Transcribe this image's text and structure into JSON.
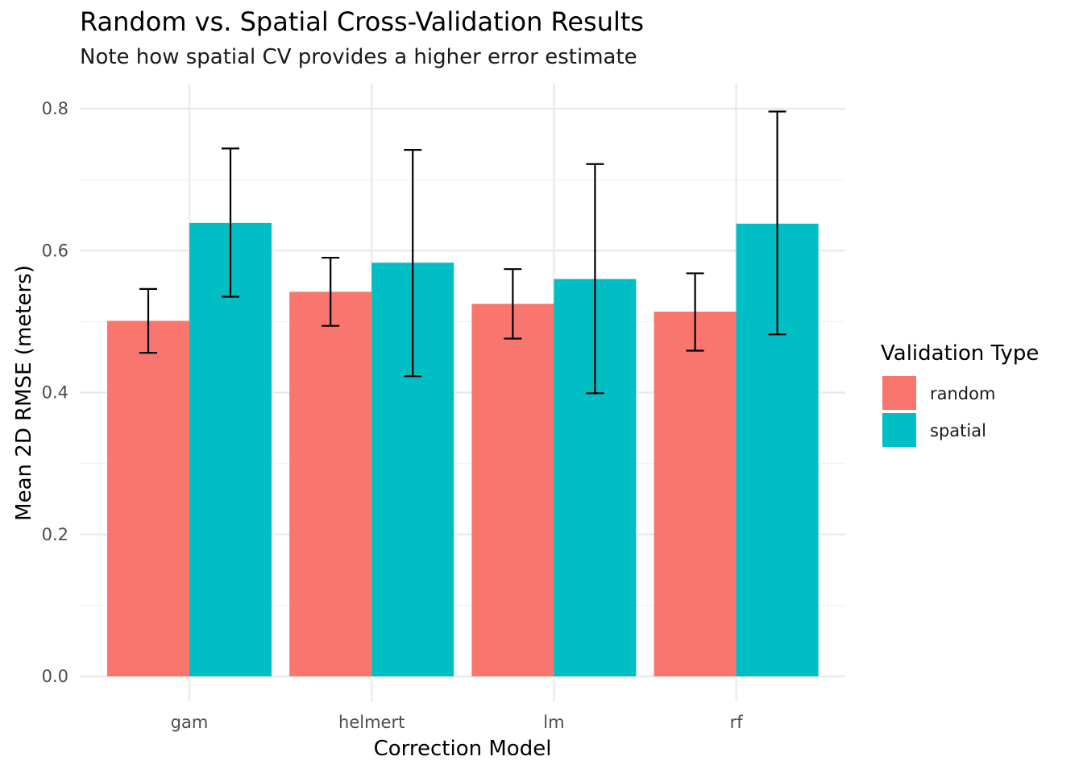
{
  "chart_data": {
    "type": "bar",
    "title": "Random vs. Spatial Cross-Validation Results",
    "subtitle": "Note how spatial CV provides a higher error estimate",
    "xlabel": "Correction Model",
    "ylabel": "Mean 2D RMSE (meters)",
    "categories": [
      "gam",
      "helmert",
      "lm",
      "rf"
    ],
    "ylim": [
      -0.03,
      0.836
    ],
    "yticks": [
      0.0,
      0.2,
      0.4,
      0.6,
      0.8
    ],
    "ytick_labels": [
      "0.0",
      "0.2",
      "0.4",
      "0.6",
      "0.8"
    ],
    "grid": true,
    "legend": {
      "title": "Validation Type",
      "position": "right"
    },
    "series": [
      {
        "name": "random",
        "color": "#F8766D",
        "values": [
          0.501,
          0.542,
          0.525,
          0.514
        ],
        "err_low": [
          0.456,
          0.494,
          0.476,
          0.459
        ],
        "err_high": [
          0.546,
          0.59,
          0.574,
          0.568
        ]
      },
      {
        "name": "spatial",
        "color": "#00BFC4",
        "values": [
          0.639,
          0.583,
          0.56,
          0.638
        ],
        "err_low": [
          0.535,
          0.423,
          0.399,
          0.482
        ],
        "err_high": [
          0.744,
          0.742,
          0.722,
          0.796
        ]
      }
    ]
  }
}
